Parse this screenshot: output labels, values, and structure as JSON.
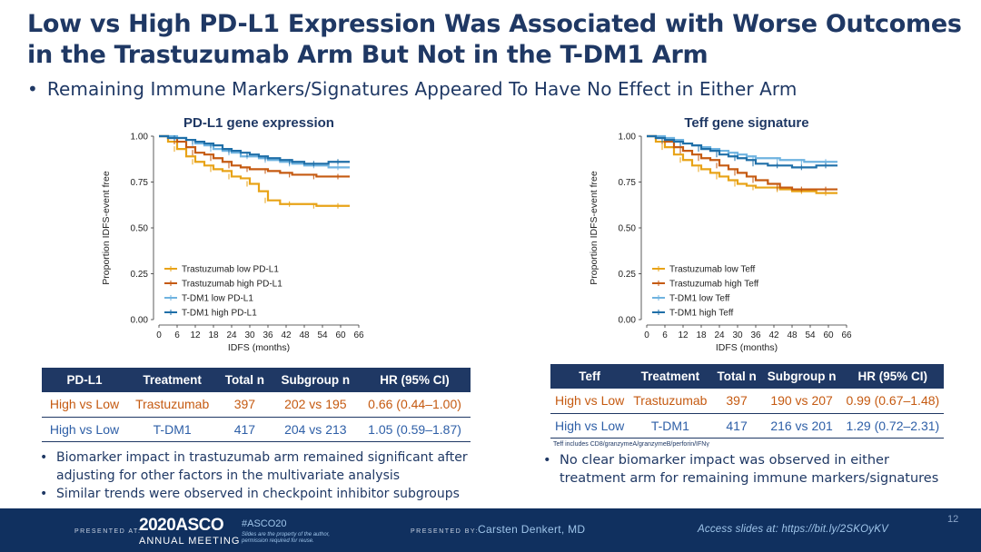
{
  "slide": {
    "title": "Low vs High PD-L1 Expression Was Associated with Worse Outcomes in the Trastuzumab Arm But Not in the T-DM1 Arm",
    "subtitle_bullet": "•",
    "subtitle": "Remaining Immune Markers/Signatures Appeared To Have No Effect in Either Arm",
    "page_number": "12"
  },
  "colors": {
    "navy": "#1f3864",
    "trastuzumab_low": "#e8a317",
    "trastuzumab_high": "#c55a11",
    "tdm1_low": "#6fb3e0",
    "tdm1_high": "#1f6fa8"
  },
  "chart_data": [
    {
      "type": "line",
      "title": "PD-L1 gene expression",
      "xlabel": "IDFS (months)",
      "ylabel": "Proportion IDFS-event free",
      "x_ticks": [
        "0",
        "6",
        "12",
        "18",
        "24",
        "30",
        "36",
        "42",
        "48",
        "54",
        "60",
        "66"
      ],
      "y_ticks": [
        "0.00",
        "0.25",
        "0.50",
        "0.75",
        "1.00"
      ],
      "xlim": [
        0,
        66
      ],
      "ylim": [
        0,
        1
      ],
      "legend_position": "bottom-left",
      "series": [
        {
          "name": "Trastuzumab low PD-L1",
          "color": "#e8a317",
          "x": [
            0,
            3,
            6,
            9,
            12,
            15,
            18,
            21,
            24,
            27,
            30,
            33,
            36,
            40,
            44,
            48,
            52,
            56,
            60,
            63
          ],
          "y": [
            1.0,
            0.97,
            0.93,
            0.89,
            0.86,
            0.84,
            0.82,
            0.81,
            0.78,
            0.77,
            0.74,
            0.7,
            0.65,
            0.63,
            0.63,
            0.63,
            0.62,
            0.62,
            0.62,
            0.62
          ]
        },
        {
          "name": "Trastuzumab high PD-L1",
          "color": "#c55a11",
          "x": [
            0,
            3,
            6,
            9,
            12,
            15,
            18,
            21,
            24,
            27,
            30,
            33,
            36,
            40,
            44,
            48,
            52,
            56,
            60,
            63
          ],
          "y": [
            1.0,
            0.99,
            0.97,
            0.94,
            0.91,
            0.9,
            0.88,
            0.86,
            0.84,
            0.83,
            0.82,
            0.82,
            0.81,
            0.8,
            0.79,
            0.79,
            0.78,
            0.78,
            0.78,
            0.78
          ]
        },
        {
          "name": "T-DM1 low PD-L1",
          "color": "#6fb3e0",
          "x": [
            0,
            3,
            6,
            9,
            12,
            15,
            18,
            21,
            24,
            27,
            30,
            33,
            36,
            40,
            44,
            48,
            52,
            56,
            60,
            63
          ],
          "y": [
            1.0,
            1.0,
            0.99,
            0.98,
            0.96,
            0.95,
            0.93,
            0.92,
            0.91,
            0.89,
            0.89,
            0.88,
            0.87,
            0.86,
            0.85,
            0.84,
            0.84,
            0.83,
            0.83,
            0.83
          ]
        },
        {
          "name": "T-DM1 high PD-L1",
          "color": "#1f6fa8",
          "x": [
            0,
            3,
            6,
            9,
            12,
            15,
            18,
            21,
            24,
            27,
            30,
            33,
            36,
            40,
            44,
            48,
            52,
            56,
            60,
            63
          ],
          "y": [
            1.0,
            0.99,
            0.99,
            0.98,
            0.97,
            0.96,
            0.95,
            0.93,
            0.92,
            0.91,
            0.9,
            0.89,
            0.88,
            0.87,
            0.86,
            0.85,
            0.85,
            0.86,
            0.86,
            0.86
          ]
        }
      ]
    },
    {
      "type": "line",
      "title": "Teff gene signature",
      "xlabel": "IDFS (months)",
      "ylabel": "Proportion IDFS-event free",
      "x_ticks": [
        "0",
        "6",
        "12",
        "18",
        "24",
        "30",
        "36",
        "42",
        "48",
        "54",
        "60",
        "66"
      ],
      "y_ticks": [
        "0.00",
        "0.25",
        "0.50",
        "0.75",
        "1.00"
      ],
      "xlim": [
        0,
        66
      ],
      "ylim": [
        0,
        1
      ],
      "legend_position": "bottom-left",
      "series": [
        {
          "name": "Trastuzumab low Teff",
          "color": "#e8a317",
          "x": [
            0,
            3,
            6,
            9,
            12,
            15,
            18,
            21,
            24,
            27,
            30,
            33,
            36,
            40,
            44,
            48,
            52,
            56,
            60,
            63
          ],
          "y": [
            1.0,
            0.97,
            0.94,
            0.9,
            0.87,
            0.84,
            0.82,
            0.8,
            0.78,
            0.76,
            0.74,
            0.73,
            0.72,
            0.72,
            0.71,
            0.7,
            0.7,
            0.69,
            0.69,
            0.69
          ]
        },
        {
          "name": "Trastuzumab high Teff",
          "color": "#c55a11",
          "x": [
            0,
            3,
            6,
            9,
            12,
            15,
            18,
            21,
            24,
            27,
            30,
            33,
            36,
            40,
            44,
            48,
            52,
            56,
            60,
            63
          ],
          "y": [
            1.0,
            0.99,
            0.97,
            0.94,
            0.92,
            0.9,
            0.88,
            0.87,
            0.84,
            0.82,
            0.8,
            0.78,
            0.76,
            0.74,
            0.72,
            0.71,
            0.71,
            0.71,
            0.71,
            0.71
          ]
        },
        {
          "name": "T-DM1 low Teff",
          "color": "#6fb3e0",
          "x": [
            0,
            3,
            6,
            9,
            12,
            15,
            18,
            21,
            24,
            27,
            30,
            33,
            36,
            40,
            44,
            48,
            52,
            56,
            60,
            63
          ],
          "y": [
            1.0,
            1.0,
            0.99,
            0.98,
            0.96,
            0.95,
            0.94,
            0.93,
            0.92,
            0.91,
            0.9,
            0.89,
            0.88,
            0.88,
            0.87,
            0.87,
            0.86,
            0.86,
            0.86,
            0.86
          ]
        },
        {
          "name": "T-DM1 high Teff",
          "color": "#1f6fa8",
          "x": [
            0,
            3,
            6,
            9,
            12,
            15,
            18,
            21,
            24,
            27,
            30,
            33,
            36,
            40,
            44,
            48,
            52,
            56,
            60,
            63
          ],
          "y": [
            1.0,
            0.99,
            0.98,
            0.97,
            0.96,
            0.95,
            0.93,
            0.92,
            0.9,
            0.89,
            0.88,
            0.87,
            0.85,
            0.84,
            0.84,
            0.83,
            0.83,
            0.84,
            0.84,
            0.84
          ]
        }
      ]
    }
  ],
  "tables": {
    "left": {
      "headers": [
        "PD-L1",
        "Treatment",
        "Total n",
        "Subgroup n",
        "HR (95% CI)"
      ],
      "rows": [
        [
          "High vs  Low",
          "Trastuzumab",
          "397",
          "202 vs 195",
          "0.66 (0.44–1.00)"
        ],
        [
          "High vs  Low",
          "T-DM1",
          "417",
          "204 vs 213",
          "1.05 (0.59–1.87)"
        ]
      ]
    },
    "right": {
      "headers": [
        "Teff",
        "Treatment",
        "Total n",
        "Subgroup n",
        "HR (95% CI)"
      ],
      "rows": [
        [
          "High vs  Low",
          "Trastuzumab",
          "397",
          "190 vs 207",
          "0.99 (0.67–1.48)"
        ],
        [
          "High vs  Low",
          "T-DM1",
          "417",
          "216 vs 201",
          "1.29 (0.72–2.31)"
        ]
      ],
      "footnote": "Teff includes CD8/granzymeA/granzymeB/perforin/IFNγ"
    }
  },
  "bullets": {
    "left": [
      "Biomarker impact in trastuzumab arm remained significant after adjusting for other factors in the multivariate analysis",
      "Similar trends were observed in checkpoint inhibitor subgroups"
    ],
    "right": [
      "No clear biomarker impact was observed in either treatment arm for remaining immune markers/signatures"
    ]
  },
  "footer": {
    "presented_at_label": "PRESENTED AT:",
    "asco_year": "2020ASCO",
    "asco_meeting": "ANNUAL MEETING",
    "hashtag": "#ASCO20",
    "hashtag_note": "Slides are the property of the author, permission required for reuse.",
    "presented_by_label": "PRESENTED BY:",
    "presenter": "Carsten Denkert, MD",
    "access": "Access slides at: https://bit.ly/2SKOyKV"
  }
}
